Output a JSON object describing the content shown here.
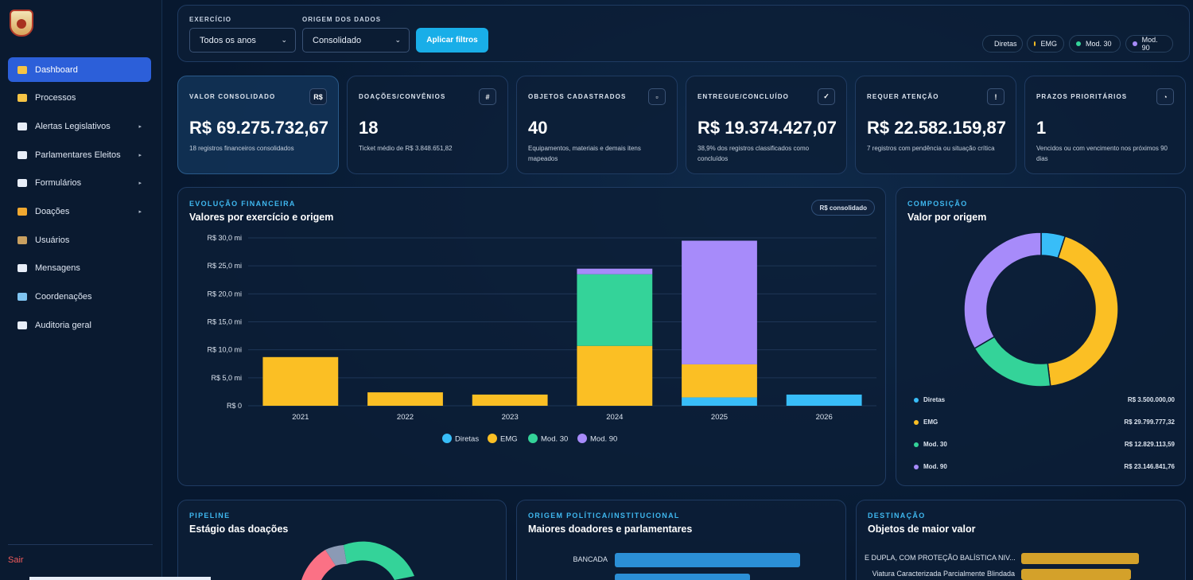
{
  "sidebar": {
    "items": [
      {
        "label": "Dashboard",
        "active": true,
        "icon": "home-icon",
        "color": "#f6c445",
        "arrow": false
      },
      {
        "label": "Processos",
        "icon": "folder-icon",
        "color": "#f6c445",
        "arrow": false
      },
      {
        "label": "Alertas Legislativos",
        "icon": "alert-icon",
        "color": "#e8eef8",
        "arrow": true
      },
      {
        "label": "Parlamentares Eleitos",
        "icon": "building-icon",
        "color": "#e8eef8",
        "arrow": true
      },
      {
        "label": "Formulários",
        "icon": "document-icon",
        "color": "#e8eef8",
        "arrow": true
      },
      {
        "label": "Doações",
        "icon": "money-bag-icon",
        "color": "#f0a830",
        "arrow": true
      },
      {
        "label": "Usuários",
        "icon": "users-icon",
        "color": "#c9a060",
        "arrow": false
      },
      {
        "label": "Mensagens",
        "icon": "envelope-icon",
        "color": "#e8eef8",
        "arrow": false
      },
      {
        "label": "Coordenações",
        "icon": "grid-icon",
        "color": "#7fc4f0",
        "arrow": false
      },
      {
        "label": "Auditoria geral",
        "icon": "clipboard-icon",
        "color": "#e8eef8",
        "arrow": false
      }
    ],
    "logout": "Sair",
    "arrow_glyph": "▸"
  },
  "filters": {
    "exercise_label": "EXERCÍCIO",
    "exercise_value": "Todos os anos",
    "origin_label": "ORIGEM DOS DADOS",
    "origin_value": "Consolidado",
    "apply_label": "Aplicar filtros",
    "chevron": "⌄",
    "legend": [
      {
        "label": "Diretas",
        "color": "#38bdf8"
      },
      {
        "label": "EMG",
        "color": "#fbbf24"
      },
      {
        "label": "Mod. 30",
        "color": "#34d399"
      },
      {
        "label": "Mod. 90",
        "color": "#a78bfa"
      }
    ]
  },
  "kpis": [
    {
      "label": "VALOR CONSOLIDADO",
      "badge": "R$",
      "value": "R$ 69.275.732,67",
      "note": "18 registros financeiros consolidados"
    },
    {
      "label": "DOAÇÕES/CONVÊNIOS",
      "badge": "#",
      "value": "18",
      "note": "Ticket médio de R$ 3.848.651,82"
    },
    {
      "label": "OBJETOS CADASTRADOS",
      "badge": "▫",
      "value": "40",
      "note": "Equipamentos, materiais e demais itens mapeados"
    },
    {
      "label": "ENTREGUE/CONCLUÍDO",
      "badge": "✓",
      "value": "R$ 19.374.427,07",
      "note": "38,9% dos registros classificados como concluídos"
    },
    {
      "label": "REQUER ATENÇÃO",
      "badge": "!",
      "value": "R$ 22.582.159,87",
      "note": "7 registros com pendência ou situação crítica"
    },
    {
      "label": "PRAZOS PRIORITÁRIOS",
      "badge": "◔",
      "value": "1",
      "note": "Vencidos ou com vencimento nos próximos 90 dias"
    }
  ],
  "evolution": {
    "tag": "EVOLUÇÃO FINANCEIRA",
    "title": "Valores por exercício e origem",
    "pill": "R$ consolidado"
  },
  "composition": {
    "tag": "COMPOSIÇÃO",
    "title": "Valor por origem",
    "legend": [
      {
        "label": "Diretas",
        "value": "R$ 3.500.000,00"
      },
      {
        "label": "EMG",
        "value": "R$ 29.799.777,32"
      },
      {
        "label": "Mod. 30",
        "value": "R$ 12.829.113,59"
      },
      {
        "label": "Mod. 90",
        "value": "R$ 23.146.841,76"
      }
    ]
  },
  "bottom": [
    {
      "tag": "PIPELINE",
      "title": "Estágio das doações"
    },
    {
      "tag": "ORIGEM POLÍTICA/INSTITUCIONAL",
      "title": "Maiores doadores e parlamentares",
      "bar_label": "BANCADA"
    },
    {
      "tag": "DESTINAÇÃO",
      "title": "Objetos de maior valor",
      "rows": [
        "E DUPLA, COM PROTEÇÃO BALÍSTICA NIV...",
        "Viatura Caracterizada Parcialmente Blindada"
      ]
    }
  ],
  "chart_data": [
    {
      "type": "bar",
      "stacked": true,
      "categories": [
        "2021",
        "2022",
        "2023",
        "2024",
        "2025",
        "2026"
      ],
      "series": [
        {
          "name": "Diretas",
          "color": "#38bdf8",
          "values": [
            0,
            0,
            0,
            0,
            1.5,
            2.0
          ]
        },
        {
          "name": "EMG",
          "color": "#fbbf24",
          "values": [
            8.7,
            2.4,
            2.0,
            10.7,
            5.9,
            0
          ]
        },
        {
          "name": "Mod. 30",
          "color": "#34d399",
          "values": [
            0,
            0,
            0,
            12.8,
            0,
            0
          ]
        },
        {
          "name": "Mod. 90",
          "color": "#a78bfa",
          "values": [
            0,
            0,
            0,
            1.0,
            22.1,
            0
          ]
        }
      ],
      "yticks": [
        "R$ 0",
        "R$ 5,0 mi",
        "R$ 10,0 mi",
        "R$ 15,0 mi",
        "R$ 20,0 mi",
        "R$ 25,0 mi",
        "R$ 30,0 mi"
      ],
      "ylim": [
        0,
        30
      ],
      "legend": "bottom",
      "grid": true
    },
    {
      "type": "pie",
      "donut": true,
      "labels": [
        "Diretas",
        "EMG",
        "Mod. 30",
        "Mod. 90"
      ],
      "values": [
        3500000.0,
        29799777.32,
        12829113.59,
        23146841.76
      ],
      "colors": [
        "#38bdf8",
        "#fbbf24",
        "#34d399",
        "#a78bfa"
      ]
    }
  ]
}
